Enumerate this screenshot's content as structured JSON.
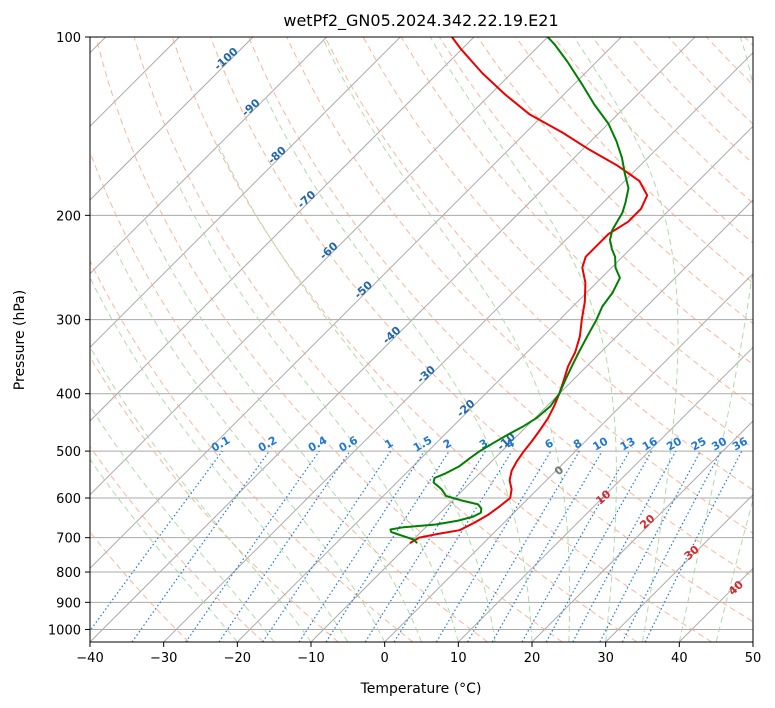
{
  "chart_data": {
    "type": "line",
    "title": "wetPf2_GN05.2024.342.22.19.E21",
    "xlabel": "Temperature (°C)",
    "ylabel": "Pressure (hPa)",
    "xlim": [
      -40,
      50
    ],
    "ylim": [
      1050,
      100
    ],
    "y_scale": "log",
    "grid": true,
    "x_ticks": [
      -40,
      -30,
      -20,
      -10,
      0,
      10,
      20,
      30,
      40,
      50
    ],
    "y_ticks": [
      100,
      200,
      300,
      400,
      500,
      600,
      700,
      800,
      900,
      1000
    ],
    "colors": {
      "temperature": "#ee0000",
      "dewpoint": "#008000",
      "isotherm": "#aaaaaa",
      "dry_adiabat": "#f4a582",
      "moist_adiabat": "#a6d7a0",
      "mixing_ratio": "#1f77d4",
      "isotherm_label": "#2166ac",
      "moist_label": "#d62728",
      "zero_label": "#777777"
    },
    "series": [
      {
        "key": "temperature",
        "p": [
          715,
          700,
          690,
          680,
          660,
          640,
          620,
          600,
          580,
          560,
          540,
          520,
          500,
          480,
          460,
          440,
          420,
          400,
          380,
          360,
          340,
          320,
          300,
          280,
          260,
          245,
          235,
          225,
          215,
          205,
          195,
          185,
          175,
          165,
          155,
          145,
          135,
          125,
          115,
          105,
          100
        ],
        "t": [
          -10,
          -9.5,
          -7.5,
          -5,
          -4,
          -3.2,
          -2.8,
          -2.5,
          -3.5,
          -5,
          -6,
          -6.6,
          -7,
          -7.3,
          -7.7,
          -8.2,
          -9,
          -10,
          -11.2,
          -12.5,
          -13.5,
          -15,
          -17,
          -19,
          -21.5,
          -24,
          -25,
          -25,
          -25,
          -24,
          -24,
          -25,
          -28,
          -33,
          -39,
          -45,
          -52,
          -58,
          -64,
          -70,
          -73
        ]
      },
      {
        "key": "dewpoint",
        "p": [
          715,
          705,
          695,
          690,
          685,
          678,
          672,
          665,
          655,
          645,
          635,
          625,
          615,
          605,
          595,
          580,
          565,
          555,
          545,
          530,
          515,
          500,
          485,
          470,
          455,
          440,
          420,
          400,
          380,
          360,
          340,
          320,
          300,
          285,
          270,
          255,
          245,
          235,
          228,
          220,
          212,
          205,
          198,
          190,
          180,
          170,
          160,
          150,
          140,
          130,
          120,
          110,
          103,
          100
        ],
        "t": [
          -9,
          -10,
          -12,
          -13,
          -14,
          -14.5,
          -13,
          -9,
          -6.5,
          -5,
          -4.5,
          -5,
          -6,
          -9,
          -11.5,
          -13,
          -15,
          -15.5,
          -14.6,
          -13.7,
          -13.4,
          -13,
          -12.3,
          -11.5,
          -10.5,
          -9.8,
          -9.5,
          -10,
          -11,
          -12,
          -13,
          -14,
          -15,
          -16,
          -16.5,
          -17.5,
          -19.5,
          -21,
          -22.5,
          -24,
          -25,
          -25.5,
          -26,
          -27,
          -28.5,
          -31,
          -33.5,
          -36.5,
          -40,
          -44.5,
          -49,
          -54,
          -58,
          -60
        ]
      }
    ],
    "isotherm_labels": [
      -100,
      -90,
      -80,
      -70,
      -60,
      -50,
      -40,
      -30,
      -20,
      -10
    ],
    "mixing_ratio_labels": [
      "0.1",
      "0.2",
      "0.4",
      "0.6",
      "1",
      "1.5",
      "2",
      "3",
      "4",
      "6",
      "8",
      "10",
      "13",
      "16",
      "20",
      "25",
      "30",
      "36"
    ],
    "moist_adiabat_labels": [
      "0",
      "10",
      "20",
      "30",
      "40"
    ]
  }
}
